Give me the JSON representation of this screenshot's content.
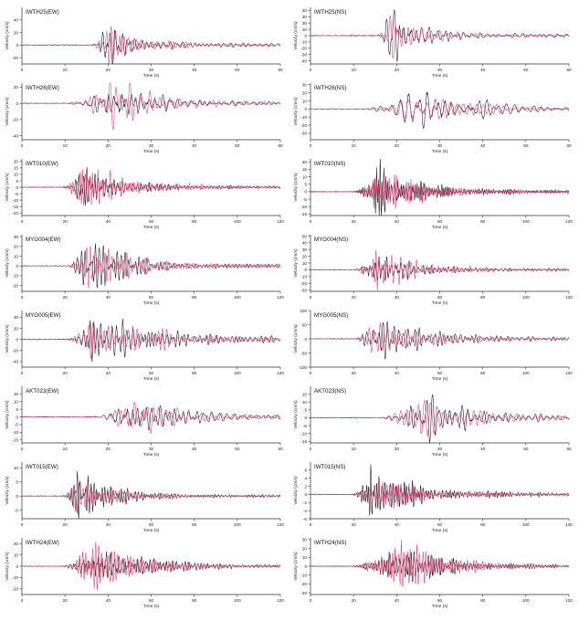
{
  "figure": {
    "ylabel": "Velocity (cm/s)",
    "xlabel": "Time (s)",
    "colors": {
      "observed": "#1a1a1a",
      "synthetic": "#e8336d",
      "axis": "#333333"
    }
  },
  "chart_data": [
    {
      "type": "line",
      "title": "IWTH25(EW)",
      "xlabel": "Time (s)",
      "ylabel": "Velocity (cm/s)",
      "xlim": [
        0,
        60
      ],
      "ylim": [
        -30,
        60
      ],
      "xticks": [
        0,
        10,
        20,
        30,
        40,
        50,
        60
      ],
      "yticks": [
        -20,
        0,
        20,
        40
      ],
      "envelope": {
        "onset": 16,
        "peak": 19.5,
        "amp": 35,
        "decay": 7,
        "freq": 0.8
      }
    },
    {
      "type": "line",
      "title": "IWTH25(NS)",
      "xlabel": "Time (s)",
      "ylabel": "Velocity (cm/s)",
      "xlim": [
        0,
        60
      ],
      "ylim": [
        -45,
        45
      ],
      "xticks": [
        0,
        10,
        20,
        30,
        40,
        50,
        60
      ],
      "yticks": [
        -40,
        -30,
        -20,
        -10,
        0,
        10,
        20,
        30,
        40
      ],
      "envelope": {
        "onset": 15,
        "peak": 19,
        "amp": 38,
        "decay": 6,
        "freq": 0.75
      }
    },
    {
      "type": "line",
      "title": "IWTH26(EW)",
      "xlabel": "Time (s)",
      "ylabel": "Velocity (cm/s)",
      "xlim": [
        0,
        60
      ],
      "ylim": [
        -45,
        25
      ],
      "xticks": [
        0,
        10,
        20,
        30,
        40,
        50,
        60
      ],
      "yticks": [
        -40,
        -20,
        0,
        20
      ],
      "envelope": {
        "onset": 10,
        "peak": 22,
        "amp": 22,
        "decay": 9,
        "freq": 0.7
      }
    },
    {
      "type": "line",
      "title": "IWTH26(NS)",
      "xlabel": "Time (s)",
      "ylabel": "Velocity (cm/s)",
      "xlim": [
        0,
        60
      ],
      "ylim": [
        -38,
        32
      ],
      "xticks": [
        0,
        10,
        20,
        30,
        40,
        50,
        60
      ],
      "yticks": [
        -30,
        -20,
        -10,
        0,
        10,
        20,
        30
      ],
      "envelope": {
        "onset": 12,
        "peak": 26,
        "amp": 26,
        "decay": 10,
        "freq": 0.55
      }
    },
    {
      "type": "line",
      "title": "IWT010(EW)",
      "xlabel": "Time (s)",
      "ylabel": "Velocity (cm/s)",
      "xlim": [
        0,
        120
      ],
      "ylim": [
        -22,
        22
      ],
      "xticks": [
        0,
        20,
        40,
        60,
        80,
        100,
        120
      ],
      "yticks": [
        -20,
        -15,
        -10,
        -5,
        0,
        5,
        10,
        15,
        20
      ],
      "envelope": {
        "onset": 18,
        "peak": 28,
        "amp": 16,
        "decay": 18,
        "freq": 0.9
      }
    },
    {
      "type": "line",
      "title": "IWT010(NS)",
      "xlabel": "Time (s)",
      "ylabel": "Velocity (cm/s)",
      "xlim": [
        0,
        120
      ],
      "ylim": [
        -16,
        22
      ],
      "xticks": [
        0,
        20,
        40,
        60,
        80,
        100,
        120
      ],
      "yticks": [
        -15,
        -10,
        -5,
        0,
        5,
        10,
        15,
        20
      ],
      "envelope": {
        "onset": 20,
        "peak": 32,
        "amp": 15,
        "decay": 16,
        "freq": 0.9
      }
    },
    {
      "type": "line",
      "title": "MYG004(EW)",
      "xlabel": "Time (s)",
      "ylabel": "Velocity (cm/s)",
      "xlim": [
        0,
        120
      ],
      "ylim": [
        -26,
        32
      ],
      "xticks": [
        0,
        20,
        40,
        60,
        80,
        100,
        120
      ],
      "yticks": [
        -20,
        -10,
        0,
        10,
        20,
        30
      ],
      "envelope": {
        "onset": 20,
        "peak": 30,
        "amp": 22,
        "decay": 22,
        "freq": 0.6
      }
    },
    {
      "type": "line",
      "title": "MYG004(NS)",
      "xlabel": "Time (s)",
      "ylabel": "Velocity (cm/s)",
      "xlim": [
        0,
        120
      ],
      "ylim": [
        -32,
        52
      ],
      "xticks": [
        0,
        20,
        40,
        60,
        80,
        100,
        120
      ],
      "yticks": [
        -30,
        -20,
        -10,
        0,
        10,
        20,
        30,
        40,
        50
      ],
      "envelope": {
        "onset": 20,
        "peak": 30,
        "amp": 28,
        "decay": 16,
        "freq": 0.7
      }
    },
    {
      "type": "line",
      "title": "MYG005(EW)",
      "xlabel": "Time (s)",
      "ylabel": "Velocity (cm/s)",
      "xlim": [
        0,
        120
      ],
      "ylim": [
        -50,
        52
      ],
      "xticks": [
        0,
        20,
        40,
        60,
        80,
        100,
        120
      ],
      "yticks": [
        -40,
        -20,
        0,
        20,
        40
      ],
      "envelope": {
        "onset": 20,
        "peak": 32,
        "amp": 36,
        "decay": 30,
        "freq": 0.5
      }
    },
    {
      "type": "line",
      "title": "MYG005(NS)",
      "xlabel": "Time (s)",
      "ylabel": "Velocity (cm/s)",
      "xlim": [
        0,
        120
      ],
      "ylim": [
        -100,
        100
      ],
      "xticks": [
        0,
        20,
        40,
        60,
        80,
        100,
        120
      ],
      "yticks": [
        -100,
        -50,
        0,
        50,
        100
      ],
      "envelope": {
        "onset": 20,
        "peak": 30,
        "amp": 75,
        "decay": 22,
        "freq": 0.5
      }
    },
    {
      "type": "line",
      "title": "AKT023(EW)",
      "xlabel": "Time (s)",
      "ylabel": "Velocity (cm/s)",
      "xlim": [
        0,
        60
      ],
      "ylim": [
        -17,
        20
      ],
      "xticks": [
        0,
        10,
        20,
        30,
        40,
        50,
        60
      ],
      "yticks": [
        -15,
        -10,
        -5,
        0,
        5,
        10,
        15
      ],
      "envelope": {
        "onset": 17,
        "peak": 25,
        "amp": 13,
        "decay": 10,
        "freq": 0.7
      }
    },
    {
      "type": "line",
      "title": "AKT023(NS)",
      "xlabel": "Time (s)",
      "ylabel": "Velocity (cm/s)",
      "xlim": [
        0,
        60
      ],
      "ylim": [
        -16,
        20
      ],
      "xticks": [
        0,
        10,
        20,
        30,
        40,
        50,
        60
      ],
      "yticks": [
        -15,
        -10,
        -5,
        0,
        5,
        10,
        15
      ],
      "envelope": {
        "onset": 16,
        "peak": 26,
        "amp": 13,
        "decay": 10,
        "freq": 0.7
      }
    },
    {
      "type": "line",
      "title": "IWT015(EW)",
      "xlabel": "Time (s)",
      "ylabel": "Velocity (cm/s)",
      "xlim": [
        0,
        120
      ],
      "ylim": [
        -8,
        12
      ],
      "xticks": [
        0,
        20,
        40,
        60,
        80,
        100,
        120
      ],
      "yticks": [
        -5,
        0,
        5,
        10
      ],
      "envelope": {
        "onset": 18,
        "peak": 26,
        "amp": 6,
        "decay": 18,
        "freq": 0.9
      }
    },
    {
      "type": "line",
      "title": "IWT015(NS)",
      "xlabel": "Time (s)",
      "ylabel": "Velocity (cm/s)",
      "xlim": [
        0,
        120
      ],
      "ylim": [
        -6,
        8
      ],
      "xticks": [
        0,
        20,
        40,
        60,
        80,
        100,
        120
      ],
      "yticks": [
        -6,
        -4,
        -2,
        0,
        2,
        4,
        6
      ],
      "envelope": {
        "onset": 18,
        "peak": 28,
        "amp": 5,
        "decay": 20,
        "freq": 0.9
      }
    },
    {
      "type": "line",
      "title": "IWTH24(EW)",
      "xlabel": "Time (s)",
      "ylabel": "Velocity (cm/s)",
      "xlim": [
        0,
        120
      ],
      "ylim": [
        -25,
        25
      ],
      "xticks": [
        0,
        20,
        40,
        60,
        80,
        100,
        120
      ],
      "yticks": [
        -20,
        -10,
        0,
        10,
        20
      ],
      "envelope": {
        "onset": 18,
        "peak": 32,
        "amp": 18,
        "decay": 22,
        "freq": 0.8
      }
    },
    {
      "type": "line",
      "title": "IWTH24(NS)",
      "xlabel": "Time (s)",
      "ylabel": "Velocity (cm/s)",
      "xlim": [
        0,
        120
      ],
      "ylim": [
        -32,
        32
      ],
      "xticks": [
        0,
        20,
        40,
        60,
        80,
        100,
        120
      ],
      "yticks": [
        -30,
        -20,
        -10,
        0,
        10,
        20,
        30
      ],
      "envelope": {
        "onset": 18,
        "peak": 40,
        "amp": 24,
        "decay": 18,
        "freq": 0.7
      }
    }
  ]
}
